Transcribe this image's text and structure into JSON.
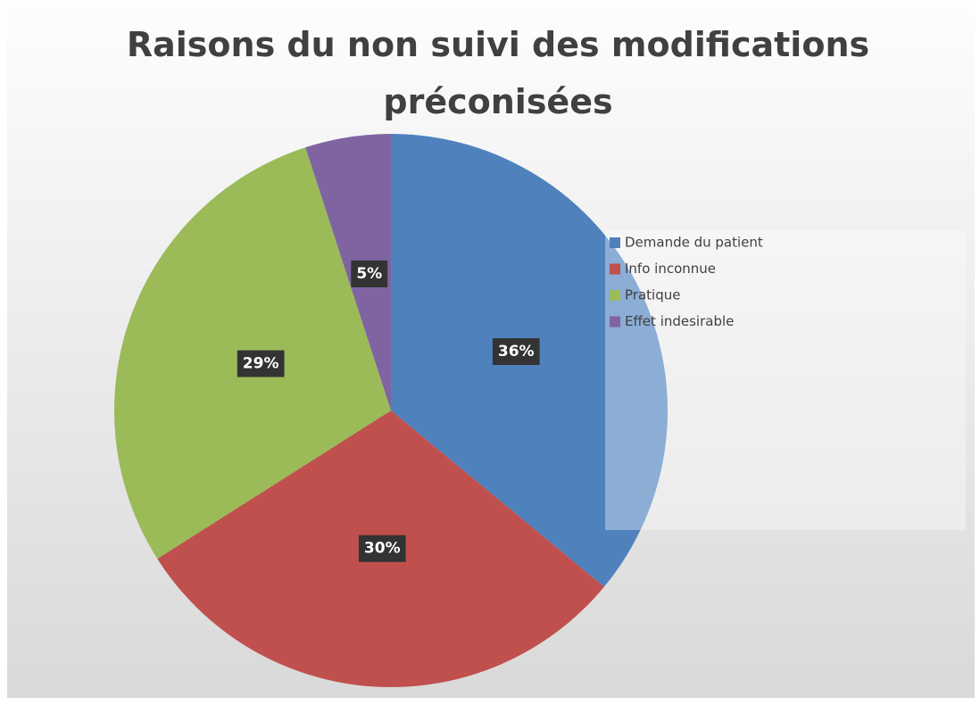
{
  "chart_data": {
    "type": "pie",
    "title": "Raisons du non suivi des modifications préconisées",
    "categories": [
      "Demande du patient",
      "Info inconnue",
      "Pratique",
      "Effet indesirable"
    ],
    "values": [
      36,
      30,
      29,
      5
    ],
    "value_labels": [
      "36%",
      "30%",
      "29%",
      "5%"
    ],
    "colors": [
      "#4f81bd",
      "#c0504d",
      "#9bbb59",
      "#8064a2"
    ],
    "legend": "right"
  }
}
